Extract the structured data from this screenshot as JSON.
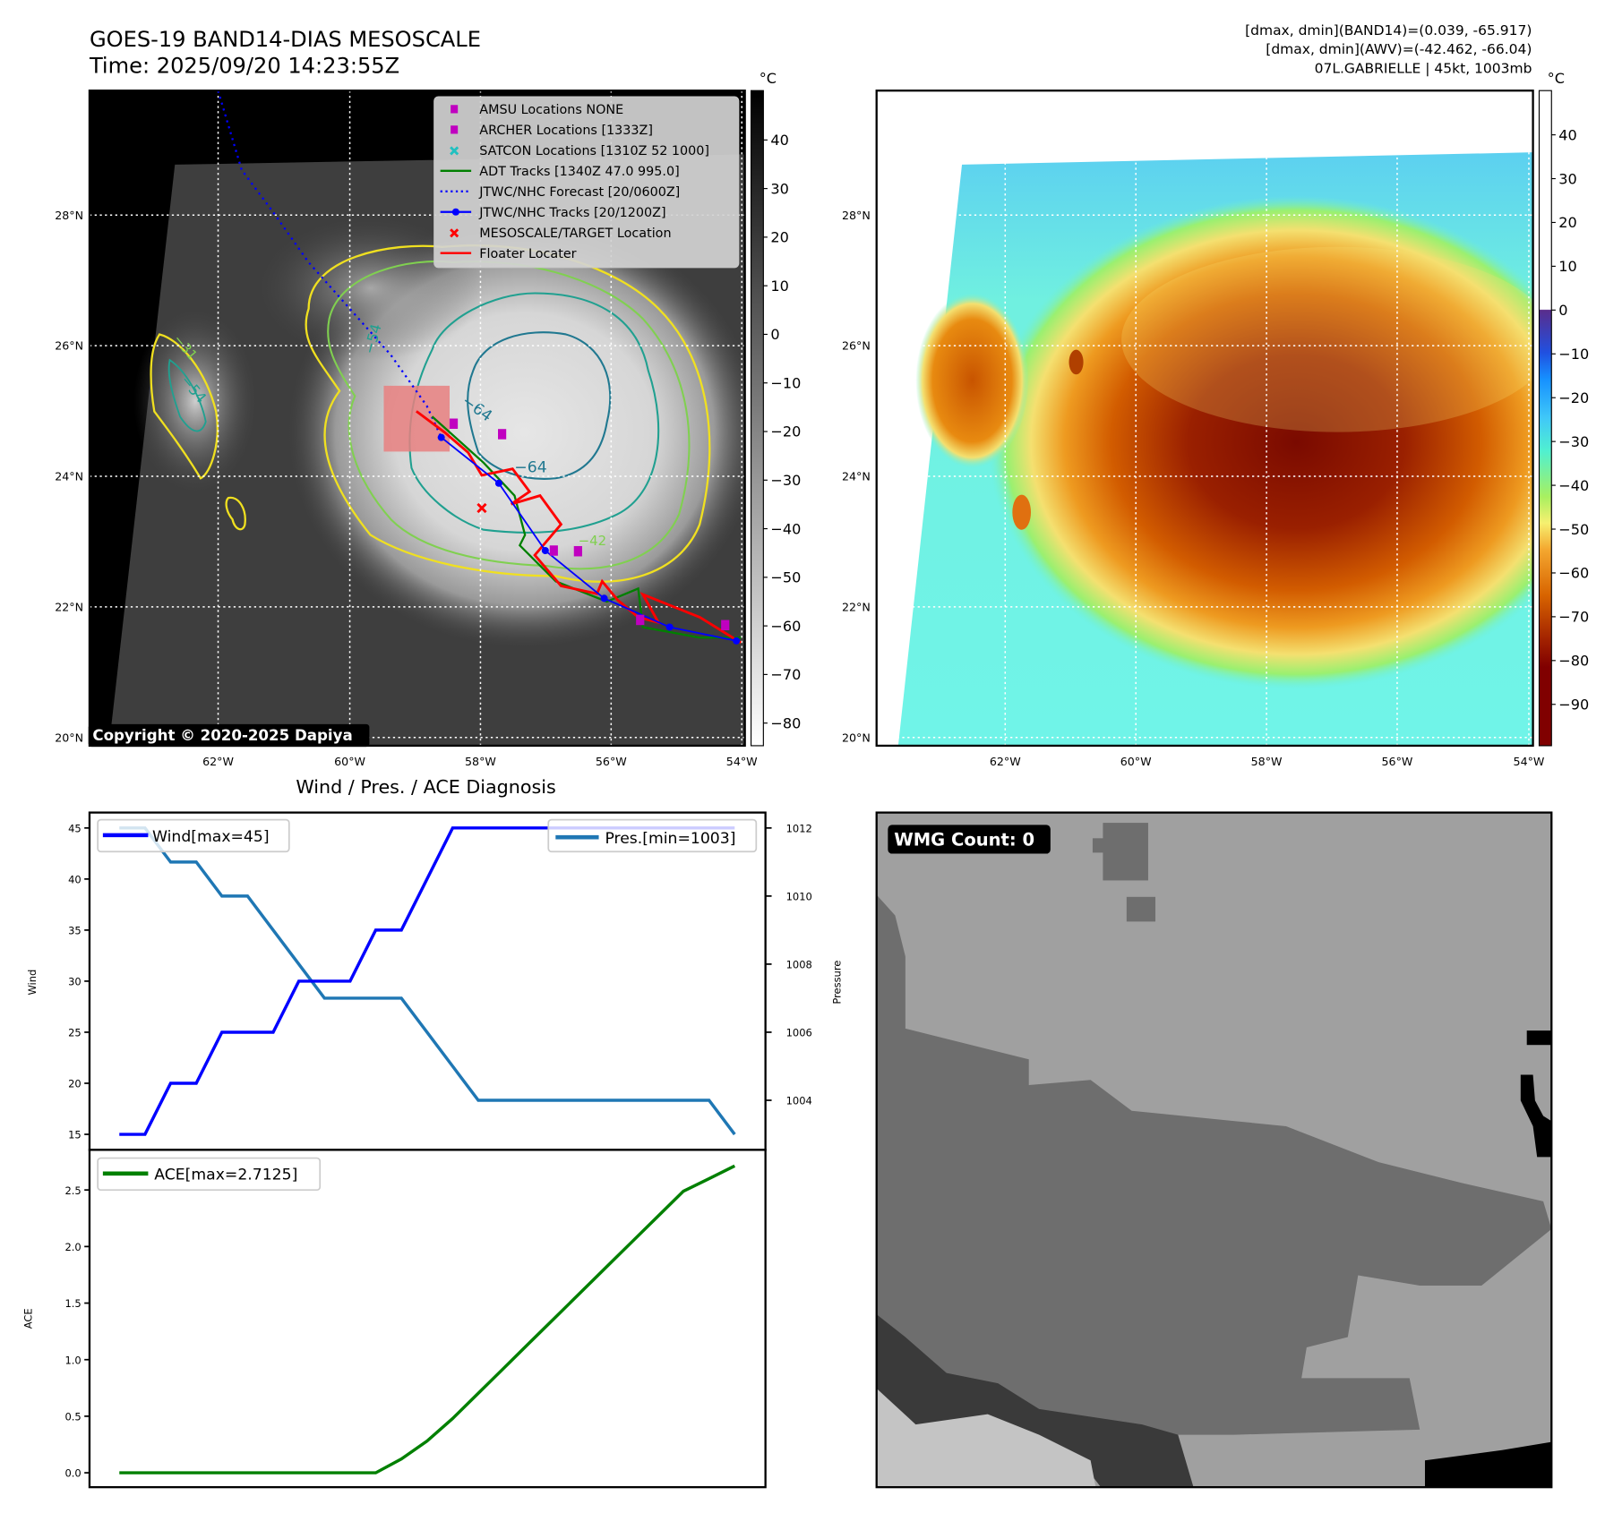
{
  "header": {
    "title": "GOES-19 BAND14-DIAS MESOSCALE",
    "time": "Time: 2025/09/20 14:23:55Z",
    "stats_band14": "[dmax, dmin](BAND14)=(0.039, -65.917)",
    "stats_awv": "[dmax, dmin](AWV)=(-42.462, -66.04)",
    "storm": "07L.GABRIELLE | 45kt, 1003mb"
  },
  "map_axes": {
    "lon_labels": [
      "62°W",
      "60°W",
      "58°W",
      "56°W",
      "54°W"
    ],
    "lat_labels": [
      "28°N",
      "26°N",
      "24°N",
      "22°N",
      "20°N"
    ]
  },
  "ir_map": {
    "copyright": "Copyright © 2020-2025 Dapiya",
    "colorbar_unit": "°C",
    "colorbar_ticks": [
      "40",
      "30",
      "20",
      "10",
      "0",
      "−10",
      "−20",
      "−30",
      "−40",
      "−50",
      "−60",
      "−70",
      "−80"
    ],
    "contour_labels": [
      "−64",
      "−64",
      "−54",
      "−54",
      "−31",
      "−42"
    ],
    "legend": [
      {
        "label": "AMSU Locations NONE",
        "marker": "square",
        "color": "#c000c0"
      },
      {
        "label": "ARCHER Locations [1333Z]",
        "marker": "square",
        "color": "#c000c0"
      },
      {
        "label": "SATCON Locations [1310Z 52 1000]",
        "marker": "x",
        "color": "#20c0c0"
      },
      {
        "label": "ADT Tracks [1340Z 47.0 995.0]",
        "marker": "line",
        "color": "#008000"
      },
      {
        "label": "JTWC/NHC Forecast [20/0600Z]",
        "marker": "dotted",
        "color": "#0000ff"
      },
      {
        "label": "JTWC/NHC Tracks [20/1200Z]",
        "marker": "line-dot",
        "color": "#0000ff"
      },
      {
        "label": "MESOSCALE/TARGET Location",
        "marker": "x",
        "color": "#ff0000"
      },
      {
        "label": "Floater Locater",
        "marker": "line",
        "color": "#ff0000"
      }
    ],
    "jtwc_track": [
      [
        -58.59,
        24.6
      ],
      [
        -57.71,
        23.9
      ],
      [
        -57.0,
        22.87
      ],
      [
        -56.1,
        22.14
      ],
      [
        -55.1,
        21.7
      ],
      [
        -54.08,
        21.49
      ]
    ],
    "jtwc_forecast": [
      [
        -62.0,
        29.9
      ],
      [
        -61.64,
        28.69
      ],
      [
        -61.17,
        28.06
      ],
      [
        -60.62,
        27.28
      ],
      [
        -59.99,
        26.57
      ],
      [
        -59.36,
        25.86
      ],
      [
        -58.81,
        25.08
      ],
      [
        -58.59,
        24.6
      ]
    ],
    "adt_track": [
      [
        -58.73,
        24.92
      ],
      [
        -57.94,
        24.21
      ],
      [
        -57.47,
        23.71
      ],
      [
        -57.31,
        23.11
      ],
      [
        -57.39,
        22.95
      ],
      [
        -56.84,
        22.4
      ],
      [
        -56.06,
        22.09
      ],
      [
        -55.58,
        22.29
      ],
      [
        -55.51,
        21.7
      ],
      [
        -54.64,
        21.54
      ],
      [
        -54.01,
        21.54
      ]
    ],
    "floater_track": [
      [
        -58.97,
        25.0
      ],
      [
        -58.54,
        24.68
      ],
      [
        -58.18,
        24.37
      ],
      [
        -57.97,
        24.02
      ],
      [
        -57.5,
        24.12
      ],
      [
        -57.24,
        23.77
      ],
      [
        -57.52,
        23.58
      ],
      [
        -57.08,
        23.71
      ],
      [
        -56.76,
        23.27
      ],
      [
        -57.16,
        22.8
      ],
      [
        -56.76,
        22.33
      ],
      [
        -56.21,
        22.21
      ],
      [
        -56.13,
        22.4
      ],
      [
        -55.9,
        22.12
      ],
      [
        -55.58,
        21.85
      ],
      [
        -55.27,
        21.77
      ],
      [
        -55.51,
        22.2
      ],
      [
        -54.64,
        21.85
      ],
      [
        -54.01,
        21.46
      ]
    ],
    "archer_points": [
      [
        -58.4,
        24.81
      ],
      [
        -57.66,
        24.65
      ],
      [
        -56.87,
        22.87
      ],
      [
        -56.5,
        22.86
      ],
      [
        -55.55,
        21.81
      ],
      [
        -54.25,
        21.73
      ]
    ],
    "target": [
      -57.97,
      23.52
    ]
  },
  "awv_map": {
    "colorbar_unit": "°C",
    "colorbar_ticks": [
      "40",
      "30",
      "20",
      "10",
      "0",
      "−10",
      "−20",
      "−30",
      "−40",
      "−50",
      "−60",
      "−70",
      "−80",
      "−90"
    ]
  },
  "wmg": {
    "label": "WMG Count: 0"
  },
  "chart_data": [
    {
      "type": "line",
      "title": "Wind / Pres. / ACE Diagnosis",
      "ylabel": "Wind",
      "y2label": "Pressure",
      "ylim": [
        14,
        46
      ],
      "y2lim": [
        1002.55,
        1012.45
      ],
      "yticks": [
        "15",
        "20",
        "25",
        "30",
        "35",
        "40",
        "45"
      ],
      "y2ticks": [
        "1004",
        "1006",
        "1008",
        "1010",
        "1012"
      ],
      "series": [
        {
          "name": "Wind[max=45]",
          "axis": "left",
          "color": "#0000ff",
          "values": [
            15,
            15,
            20,
            20,
            25,
            25,
            25,
            30,
            30,
            30,
            35,
            35,
            40,
            45,
            45,
            45,
            45,
            45,
            45,
            45,
            45,
            45,
            45,
            45,
            45
          ]
        },
        {
          "name": "Pres.[min=1003]",
          "axis": "right",
          "color": "#1f77b4",
          "values": [
            1012,
            1012,
            1011,
            1011,
            1010,
            1010,
            1009,
            1008,
            1007,
            1007,
            1007,
            1007,
            1006,
            1005,
            1004,
            1004,
            1004,
            1004,
            1004,
            1004,
            1004,
            1004,
            1004,
            1004,
            1003
          ]
        }
      ]
    },
    {
      "type": "line",
      "ylabel": "ACE",
      "ylim": [
        -0.13,
        2.85
      ],
      "yticks": [
        "0.0",
        "0.5",
        "1.0",
        "1.5",
        "2.0",
        "2.5"
      ],
      "series": [
        {
          "name": "ACE[max=2.7125]",
          "color": "#008000",
          "values": [
            0,
            0,
            0,
            0,
            0,
            0,
            0,
            0,
            0,
            0,
            0,
            0.1225,
            0.28,
            0.48,
            0.703,
            0.926,
            1.15,
            1.373,
            1.596,
            1.82,
            2.043,
            2.266,
            2.489,
            2.6,
            2.7125
          ]
        }
      ]
    }
  ]
}
